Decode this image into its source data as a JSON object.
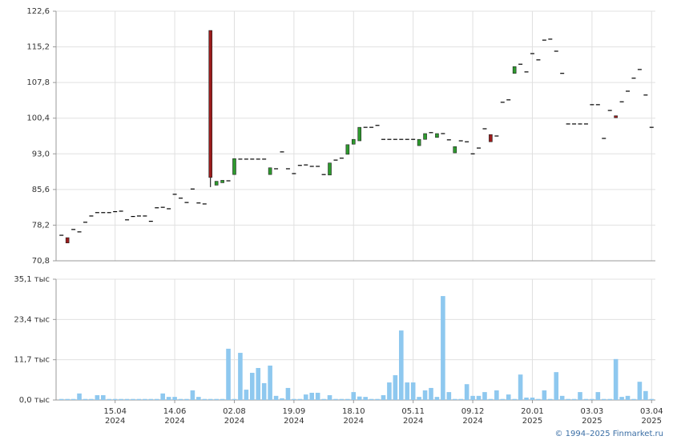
{
  "chart_data": [
    {
      "type": "candlestick",
      "up_color": "#2e9a2e",
      "down_color": "#9c1c1c",
      "flat_color": "#000000",
      "ylim": [
        70.8,
        122.6
      ],
      "yticks": [
        {
          "value": 70.8,
          "label": "70,8"
        },
        {
          "value": 78.2,
          "label": "78,2"
        },
        {
          "value": 85.6,
          "label": "85,6"
        },
        {
          "value": 93.0,
          "label": "93,0"
        },
        {
          "value": 100.4,
          "label": "100,4"
        },
        {
          "value": 107.8,
          "label": "107,8"
        },
        {
          "value": 115.2,
          "label": "115,2"
        },
        {
          "value": 122.6,
          "label": "122,6"
        }
      ],
      "grid": true,
      "open": [
        76.1,
        75.6,
        77.3,
        76.8,
        78.8,
        80.1,
        80.8,
        80.8,
        80.8,
        81.0,
        81.1,
        79.3,
        80.0,
        80.1,
        80.1,
        79.0,
        81.8,
        81.9,
        81.6,
        84.6,
        83.8,
        82.9,
        85.7,
        82.8,
        82.6,
        118.6,
        86.5,
        87.0,
        87.4,
        88.7,
        91.9,
        91.9,
        91.9,
        91.9,
        91.9,
        88.7,
        89.9,
        93.4,
        89.9,
        88.9,
        90.6,
        90.7,
        90.4,
        90.4,
        88.7,
        88.6,
        91.7,
        92.1,
        92.9,
        95.0,
        95.7,
        98.5,
        98.5,
        98.9,
        96.0,
        96.0,
        96.0,
        96.0,
        96.0,
        96.0,
        94.7,
        96.0,
        97.4,
        96.4,
        97.2,
        95.9,
        93.2,
        95.7,
        95.5,
        93.0,
        94.2,
        98.2,
        97.0,
        96.7,
        103.7,
        104.2,
        109.7,
        111.6,
        110.0,
        113.8,
        112.5,
        116.6,
        116.8,
        114.3,
        109.7,
        99.2,
        99.2,
        99.2,
        99.2,
        103.2,
        103.2,
        96.2,
        102.0,
        100.9,
        103.8,
        106.0,
        108.7,
        110.5,
        105.2,
        98.5
      ],
      "high": [
        76.1,
        75.6,
        77.3,
        76.8,
        78.8,
        80.1,
        80.8,
        80.8,
        80.8,
        81.0,
        81.1,
        79.3,
        80.0,
        80.1,
        80.1,
        79.0,
        81.8,
        81.9,
        81.6,
        84.6,
        83.8,
        82.9,
        85.7,
        82.8,
        82.6,
        118.6,
        87.3,
        87.5,
        87.4,
        92.0,
        91.9,
        91.9,
        91.9,
        91.9,
        91.9,
        90.1,
        89.9,
        93.4,
        89.9,
        88.9,
        90.6,
        90.7,
        90.4,
        90.4,
        88.7,
        91.1,
        91.7,
        92.1,
        94.9,
        96.0,
        98.5,
        98.5,
        98.5,
        98.9,
        96.0,
        96.0,
        96.0,
        96.0,
        96.0,
        96.0,
        96.0,
        97.2,
        97.4,
        97.2,
        97.2,
        95.9,
        94.5,
        95.7,
        95.5,
        93.0,
        94.2,
        98.2,
        97.0,
        96.7,
        103.7,
        104.2,
        111.1,
        111.6,
        110.0,
        113.8,
        112.5,
        116.6,
        116.8,
        114.3,
        109.7,
        99.2,
        99.2,
        99.2,
        99.2,
        103.2,
        103.2,
        96.2,
        102.0,
        100.9,
        103.8,
        106.0,
        108.7,
        110.5,
        105.2,
        98.5
      ],
      "low": [
        76.1,
        74.5,
        77.3,
        76.8,
        78.8,
        80.1,
        80.8,
        80.8,
        80.8,
        81.0,
        81.1,
        79.3,
        80.0,
        80.1,
        80.1,
        79.0,
        81.8,
        81.9,
        81.6,
        84.6,
        83.8,
        82.9,
        85.7,
        82.8,
        82.6,
        86.1,
        86.5,
        87.0,
        87.4,
        88.7,
        91.9,
        91.9,
        91.9,
        91.9,
        91.9,
        88.7,
        89.9,
        93.4,
        89.9,
        88.9,
        90.6,
        90.7,
        90.4,
        90.4,
        88.7,
        88.6,
        91.7,
        92.1,
        92.9,
        95.0,
        95.7,
        98.5,
        98.5,
        98.9,
        96.0,
        96.0,
        96.0,
        96.0,
        96.0,
        96.0,
        94.7,
        96.0,
        97.4,
        96.4,
        97.2,
        95.9,
        93.2,
        95.7,
        95.5,
        93.0,
        94.2,
        98.2,
        95.5,
        96.7,
        103.7,
        104.2,
        109.7,
        111.6,
        110.0,
        113.8,
        112.5,
        116.6,
        116.8,
        114.3,
        109.7,
        99.2,
        99.2,
        99.2,
        99.2,
        103.2,
        103.2,
        96.2,
        102.0,
        100.5,
        103.8,
        106.0,
        108.7,
        110.5,
        105.2,
        98.5
      ],
      "close": [
        76.1,
        74.5,
        77.3,
        76.8,
        78.8,
        80.1,
        80.8,
        80.8,
        80.8,
        81.0,
        81.1,
        79.3,
        80.0,
        80.1,
        80.1,
        79.0,
        81.8,
        81.9,
        81.6,
        84.6,
        83.8,
        82.9,
        85.7,
        82.8,
        82.6,
        88.1,
        87.3,
        87.5,
        87.4,
        92.0,
        91.9,
        91.9,
        91.9,
        91.9,
        91.9,
        90.1,
        89.9,
        93.4,
        89.9,
        88.9,
        90.6,
        90.7,
        90.4,
        90.4,
        88.7,
        91.1,
        91.7,
        92.1,
        94.9,
        96.0,
        98.5,
        98.5,
        98.5,
        98.9,
        96.0,
        96.0,
        96.0,
        96.0,
        96.0,
        96.0,
        96.0,
        97.2,
        97.4,
        97.2,
        97.2,
        95.9,
        94.5,
        95.7,
        95.5,
        93.0,
        94.2,
        98.2,
        95.5,
        96.7,
        103.7,
        104.2,
        111.1,
        111.6,
        110.0,
        113.8,
        112.5,
        116.6,
        116.8,
        114.3,
        109.7,
        99.2,
        99.2,
        99.2,
        99.2,
        103.2,
        103.2,
        96.2,
        102.0,
        100.5,
        103.8,
        106.0,
        108.7,
        110.5,
        105.2,
        98.5
      ]
    },
    {
      "type": "bar",
      "color": "#8ec8ef",
      "ylim": [
        0,
        35.1
      ],
      "yticks": [
        {
          "value": 0,
          "label": "0,0 тыс"
        },
        {
          "value": 11.7,
          "label": "11,7 тыс"
        },
        {
          "value": 23.4,
          "label": "23,4 тыс"
        },
        {
          "value": 35.1,
          "label": "35,1 тыс"
        }
      ],
      "grid": true,
      "categories": [
        null,
        null,
        null,
        null,
        null,
        null,
        null,
        null,
        null,
        [
          "15.04",
          "2024"
        ],
        null,
        null,
        null,
        null,
        null,
        null,
        null,
        null,
        null,
        [
          "14.06",
          "2024"
        ],
        null,
        null,
        null,
        null,
        null,
        null,
        null,
        null,
        null,
        [
          "02.08",
          "2024"
        ],
        null,
        null,
        null,
        null,
        null,
        null,
        null,
        null,
        null,
        [
          "19.09",
          "2024"
        ],
        null,
        null,
        null,
        null,
        null,
        null,
        null,
        null,
        null,
        [
          "18.10",
          "2024"
        ],
        null,
        null,
        null,
        null,
        null,
        null,
        null,
        null,
        null,
        [
          "05.11",
          "2024"
        ],
        null,
        null,
        null,
        null,
        null,
        null,
        null,
        null,
        null,
        [
          "09.12",
          "2024"
        ],
        null,
        null,
        null,
        null,
        null,
        null,
        null,
        null,
        null,
        [
          "20.01",
          "2025"
        ],
        null,
        null,
        null,
        null,
        null,
        null,
        null,
        null,
        null,
        [
          "03.03",
          "2025"
        ],
        null,
        null,
        null,
        null,
        null,
        null,
        null,
        null,
        null,
        [
          "03.04",
          "2025"
        ]
      ],
      "values": [
        0.3,
        0.3,
        0.3,
        1.9,
        0.3,
        0.3,
        1.4,
        1.4,
        0.3,
        0.3,
        0.3,
        0.3,
        0.3,
        0.3,
        0.3,
        0.3,
        0.3,
        1.9,
        0.9,
        0.9,
        0.3,
        0.3,
        2.8,
        0.9,
        0.3,
        0.3,
        0.3,
        0.3,
        14.9,
        0.3,
        13.7,
        3.0,
        7.9,
        9.3,
        4.9,
        10.0,
        1.2,
        0.5,
        3.5,
        0.3,
        0.3,
        1.6,
        2.1,
        2.1,
        0.3,
        1.4,
        0.3,
        0.3,
        0.3,
        2.3,
        1.0,
        0.9,
        0.3,
        0.3,
        1.4,
        5.1,
        7.2,
        20.2,
        5.1,
        5.1,
        0.9,
        2.8,
        3.5,
        0.9,
        30.2,
        2.3,
        0.3,
        0.3,
        4.6,
        1.2,
        1.2,
        2.3,
        0.3,
        2.8,
        0.3,
        1.6,
        0.3,
        7.4,
        0.7,
        0.7,
        0.3,
        2.8,
        0.3,
        8.1,
        1.2,
        0.3,
        0.3,
        2.3,
        0.3,
        0.3,
        2.3,
        0.3,
        0.3,
        11.9,
        0.9,
        1.2,
        0.3,
        5.3,
        2.6,
        0.3
      ]
    }
  ],
  "footer": "© 1994–2025 Finmarket.ru"
}
